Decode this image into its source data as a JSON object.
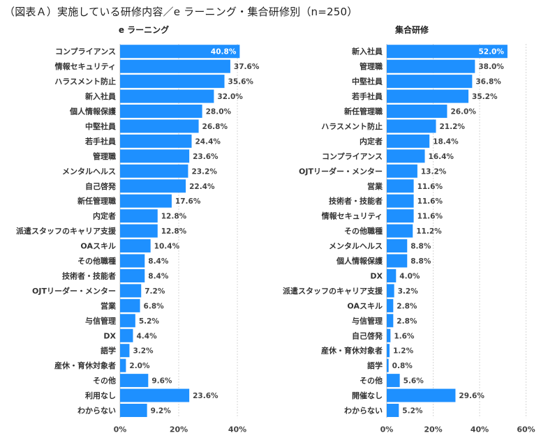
{
  "title": "（図表Ａ）実施している研修内容／e ラーニング・集合研修別（n=250）",
  "colors": {
    "bar": "#1E90FF",
    "grid": "#d6d6d6",
    "text": "#333333"
  },
  "chart_data": [
    {
      "type": "bar",
      "orientation": "horizontal",
      "title": "e ラーニング",
      "xlim": [
        0,
        40
      ],
      "ticks": [
        "0%",
        "20%",
        "40%"
      ],
      "grid": true,
      "categories": [
        "コンプライアンス",
        "情報セキュリティ",
        "ハラスメント防止",
        "新入社員",
        "個人情報保護",
        "中堅社員",
        "若手社員",
        "管理職",
        "メンタルヘルス",
        "自己啓発",
        "新任管理職",
        "内定者",
        "派遣スタッフのキャリア支援",
        "OAスキル",
        "その他職種",
        "技術者・技能者",
        "OJTリーダー・メンター",
        "営業",
        "与信管理",
        "DX",
        "語学",
        "産休・育休対象者",
        "その他",
        "利用なし",
        "わからない"
      ],
      "values": [
        40.8,
        37.6,
        35.6,
        32.0,
        28.0,
        26.8,
        24.4,
        23.6,
        23.2,
        22.4,
        17.6,
        12.8,
        12.8,
        10.4,
        8.4,
        8.4,
        7.2,
        6.8,
        5.2,
        4.4,
        3.2,
        2.0,
        9.6,
        23.6,
        9.2
      ],
      "labels": [
        "40.8%",
        "37.6%",
        "35.6%",
        "32.0%",
        "28.0%",
        "26.8%",
        "24.4%",
        "23.6%",
        "23.2%",
        "22.4%",
        "17.6%",
        "12.8%",
        "12.8%",
        "10.4%",
        "8.4%",
        "8.4%",
        "7.2%",
        "6.8%",
        "5.2%",
        "4.4%",
        "3.2%",
        "2.0%",
        "9.6%",
        "23.6%",
        "9.2%"
      ]
    },
    {
      "type": "bar",
      "orientation": "horizontal",
      "title": "集合研修",
      "xlim": [
        0,
        60
      ],
      "ticks": [
        "0%",
        "20%",
        "40%",
        "60%"
      ],
      "grid": true,
      "categories": [
        "新入社員",
        "管理職",
        "中堅社員",
        "若手社員",
        "新任管理職",
        "ハラスメント防止",
        "内定者",
        "コンプライアンス",
        "OJTリーダー・メンター",
        "営業",
        "技術者・技能者",
        "情報セキュリティ",
        "その他職種",
        "メンタルヘルス",
        "個人情報保護",
        "DX",
        "派遣スタッフのキャリア支援",
        "OAスキル",
        "与信管理",
        "自己啓発",
        "産休・育休対象者",
        "語学",
        "その他",
        "開催なし",
        "わからない"
      ],
      "values": [
        52.0,
        38.0,
        36.8,
        35.2,
        26.0,
        21.2,
        18.4,
        16.4,
        13.2,
        11.6,
        11.6,
        11.6,
        11.2,
        8.8,
        8.8,
        4.0,
        3.2,
        2.8,
        2.8,
        1.6,
        1.2,
        0.8,
        5.6,
        29.6,
        5.2
      ],
      "labels": [
        "52.0%",
        "38.0%",
        "36.8%",
        "35.2%",
        "26.0%",
        "21.2%",
        "18.4%",
        "16.4%",
        "13.2%",
        "11.6%",
        "11.6%",
        "11.6%",
        "11.2%",
        "8.8%",
        "8.8%",
        "4.0%",
        "3.2%",
        "2.8%",
        "2.8%",
        "1.6%",
        "1.2%",
        "0.8%",
        "5.6%",
        "29.6%",
        "5.2%"
      ]
    }
  ]
}
